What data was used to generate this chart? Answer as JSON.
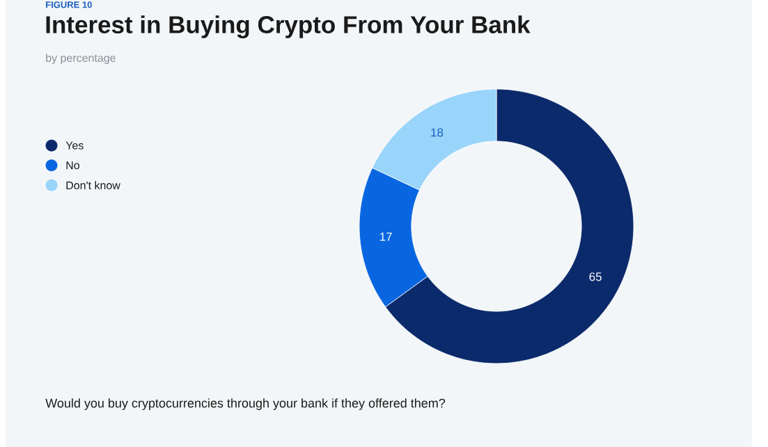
{
  "chart_data": {
    "type": "donut",
    "title": "Interest in Buying Crypto From Your Bank",
    "subtitle": "by percentage",
    "annotations": [
      "FIGURE 10",
      "Would you buy cryptocurrencies through your bank if they offered them?"
    ],
    "categories": [
      "Yes",
      "No",
      "Don't know"
    ],
    "values": [
      65,
      17,
      18
    ],
    "colors": [
      "#0b2a6b",
      "#0966e0",
      "#99d4fa"
    ],
    "data_labels": true,
    "legend": "top left"
  }
}
